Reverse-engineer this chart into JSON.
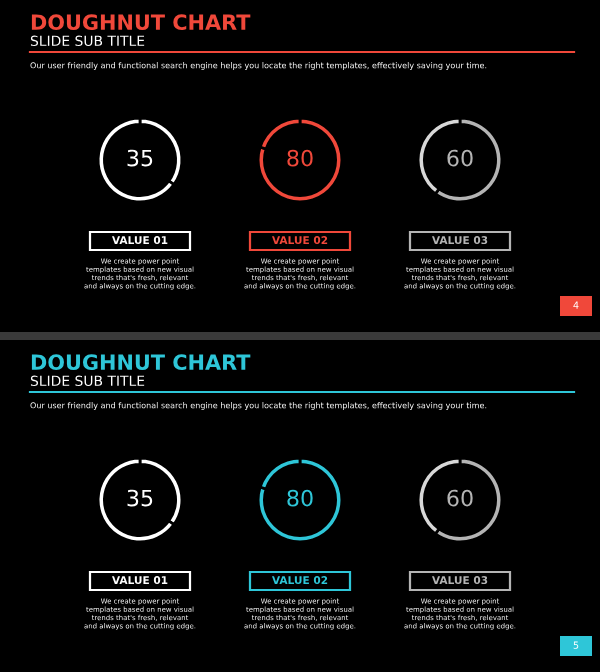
{
  "chart_data": [
    {
      "type": "other",
      "title": "DOUGHNUT CHART",
      "subtitle": "SLIDE SUB TITLE",
      "annotations": [
        "Our user friendly and functional search engine helps you locate the right templates, effectively saving your time.",
        "4"
      ]
    },
    {
      "type": "donut",
      "categories": [
        null,
        null
      ],
      "values": [
        35,
        65
      ],
      "colors": [
        "#ffffff",
        "#ffffff"
      ],
      "value_labels": [
        "35",
        null
      ],
      "xlabel": "VALUE 01",
      "annotations": [
        "We create power point\ntemplates based on new visual\ntrends that's fresh, relevant\nand always on the cutting edge."
      ]
    },
    {
      "type": "donut",
      "categories": [
        null,
        null
      ],
      "values": [
        80,
        20
      ],
      "colors": [
        "#f0483a",
        "#f0483a"
      ],
      "value_labels": [
        "80",
        null
      ],
      "xlabel": "VALUE 02",
      "annotations": [
        "We create power point\ntemplates based on new visual\ntrends that's fresh, relevant\nand always on the cutting edge."
      ]
    },
    {
      "type": "donut",
      "categories": [
        null,
        null
      ],
      "values": [
        60,
        40
      ],
      "colors": [
        "#b4b4b4",
        "#d8d8d8"
      ],
      "value_labels": [
        "60",
        null
      ],
      "xlabel": "VALUE 03",
      "annotations": [
        "We create power point\ntemplates based on new visual\ntrends that's fresh, relevant\nand always on the cutting edge."
      ]
    },
    {
      "type": "other",
      "title": "DOUGHNUT CHART",
      "subtitle": "SLIDE SUB TITLE",
      "annotations": [
        "Our user friendly and functional search engine helps you locate the right templates, effectively saving your time.",
        "5"
      ]
    },
    {
      "type": "donut",
      "categories": [
        null,
        null
      ],
      "values": [
        35,
        65
      ],
      "colors": [
        "#ffffff",
        "#ffffff"
      ],
      "value_labels": [
        "35",
        null
      ],
      "xlabel": "VALUE 01",
      "annotations": [
        "We create power point\ntemplates based on new visual\ntrends that's fresh, relevant\nand always on the cutting edge."
      ]
    },
    {
      "type": "donut",
      "categories": [
        null,
        null
      ],
      "values": [
        80,
        20
      ],
      "colors": [
        "#2ec6d8",
        "#2ec6d8"
      ],
      "value_labels": [
        "80",
        null
      ],
      "xlabel": "VALUE 02",
      "annotations": [
        "We create power point\ntemplates based on new visual\ntrends that's fresh, relevant\nand always on the cutting edge."
      ]
    },
    {
      "type": "donut",
      "categories": [
        null,
        null
      ],
      "values": [
        60,
        40
      ],
      "colors": [
        "#b4b4b4",
        "#d8d8d8"
      ],
      "value_labels": [
        "60",
        null
      ],
      "xlabel": "VALUE 03",
      "annotations": [
        "We create power point\ntemplates based on new visual\ntrends that's fresh, relevant\nand always on the cutting edge."
      ]
    }
  ]
}
